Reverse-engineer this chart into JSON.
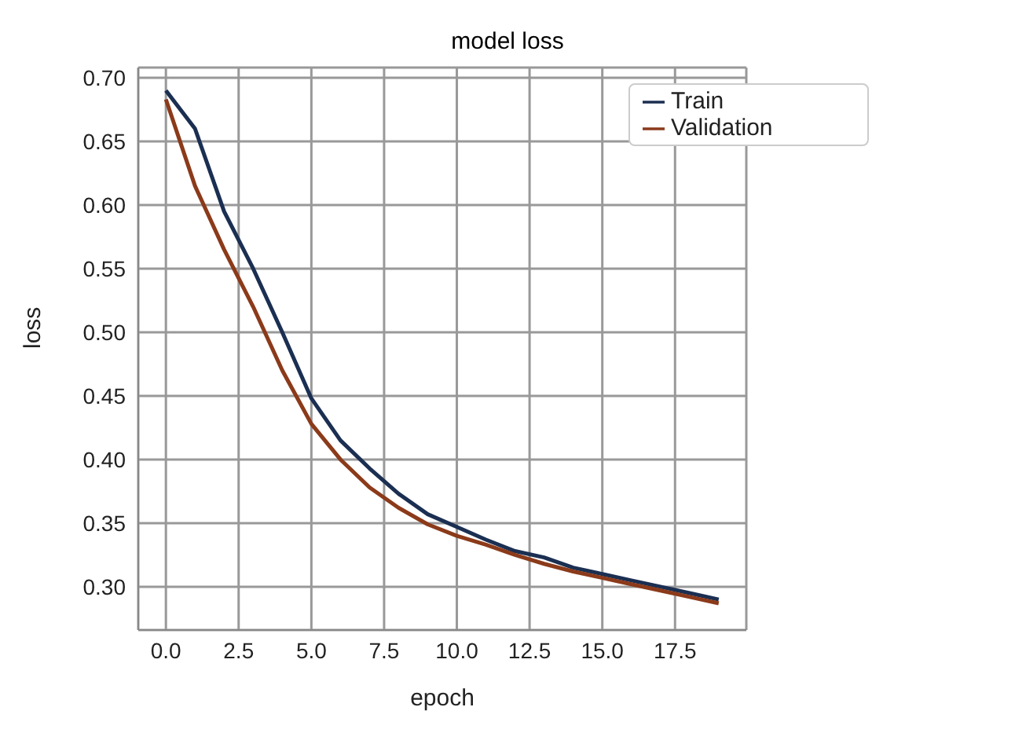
{
  "chart_data": {
    "type": "line",
    "title": "model loss",
    "xlabel": "epoch",
    "ylabel": "loss",
    "x": [
      0,
      1,
      2,
      3,
      4,
      5,
      6,
      7,
      8,
      9,
      10,
      11,
      12,
      13,
      14,
      15,
      16,
      17,
      18,
      19
    ],
    "series": [
      {
        "name": "Train",
        "color": "#1b2f52",
        "values": [
          0.69,
          0.66,
          0.595,
          0.55,
          0.5,
          0.448,
          0.415,
          0.393,
          0.373,
          0.357,
          0.347,
          0.337,
          0.328,
          0.323,
          0.315,
          0.31,
          0.305,
          0.3,
          0.295,
          0.29
        ]
      },
      {
        "name": "Validation",
        "color": "#8b3a1a",
        "values": [
          0.683,
          0.615,
          0.565,
          0.52,
          0.47,
          0.428,
          0.4,
          0.378,
          0.362,
          0.349,
          0.34,
          0.333,
          0.325,
          0.318,
          0.312,
          0.307,
          0.302,
          0.297,
          0.292,
          0.287
        ]
      }
    ],
    "xlim": [
      -0.95,
      19.95
    ],
    "xticks": [
      {
        "value": 0,
        "label": "0.0"
      },
      {
        "value": 2.5,
        "label": "2.5"
      },
      {
        "value": 5,
        "label": "5.0"
      },
      {
        "value": 7.5,
        "label": "7.5"
      },
      {
        "value": 10,
        "label": "10.0"
      },
      {
        "value": 12.5,
        "label": "12.5"
      },
      {
        "value": 15,
        "label": "15.0"
      },
      {
        "value": 17.5,
        "label": "17.5"
      }
    ],
    "ylim": [
      0.266,
      0.708
    ],
    "yticks": [
      {
        "value": 0.3,
        "label": "0.30"
      },
      {
        "value": 0.35,
        "label": "0.35"
      },
      {
        "value": 0.4,
        "label": "0.40"
      },
      {
        "value": 0.45,
        "label": "0.45"
      },
      {
        "value": 0.5,
        "label": "0.50"
      },
      {
        "value": 0.55,
        "label": "0.55"
      },
      {
        "value": 0.6,
        "label": "0.60"
      },
      {
        "value": 0.65,
        "label": "0.65"
      },
      {
        "value": 0.7,
        "label": "0.70"
      }
    ],
    "grid": true,
    "legend": "top right",
    "marker": "none",
    "line_style": "solid"
  }
}
